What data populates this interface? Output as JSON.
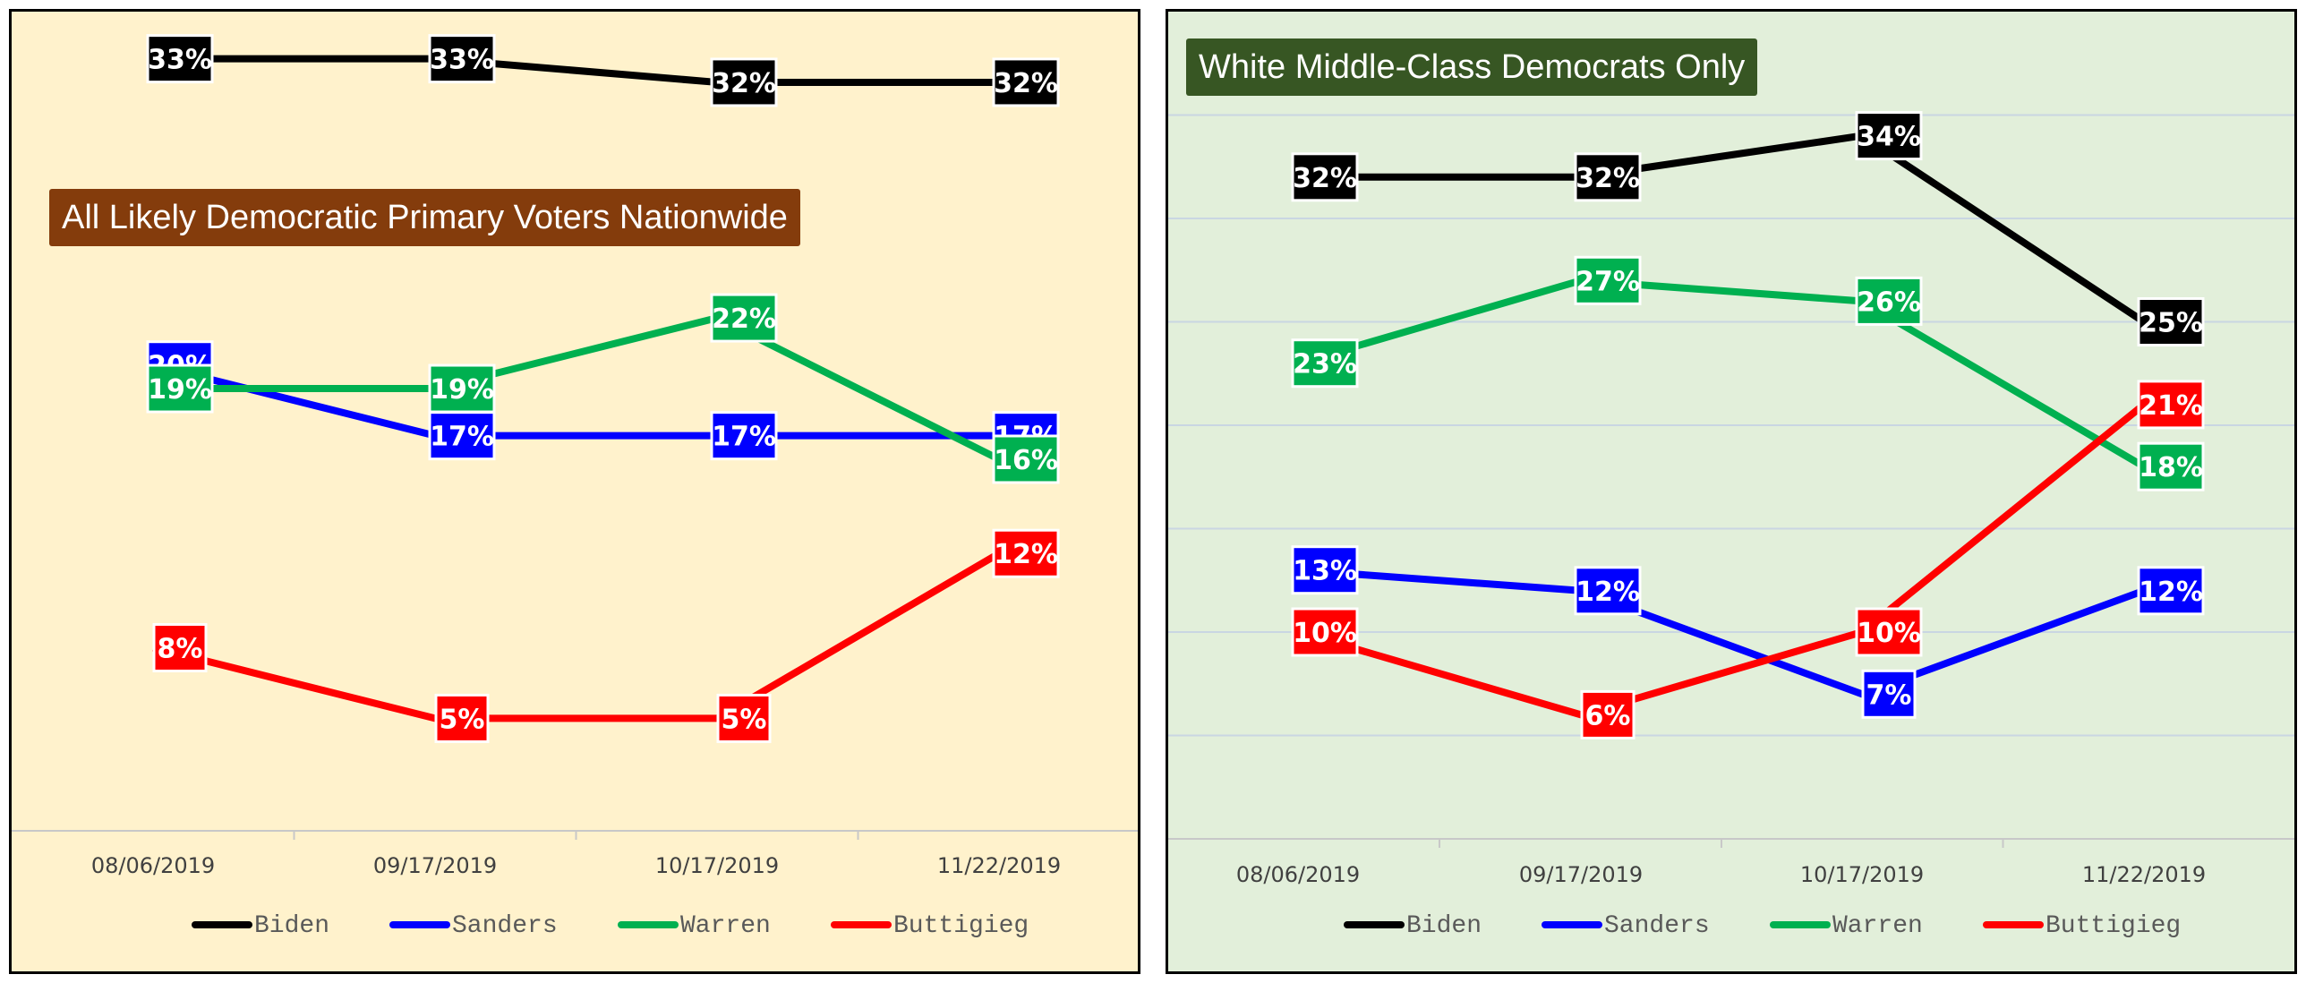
{
  "chart_data": [
    {
      "type": "line",
      "title": "All Likely Democratic Primary Voters Nationwide",
      "title_color": "#843C0C",
      "background": "#FFF2CC",
      "categories": [
        "08/06/2019",
        "09/17/2019",
        "10/17/2019",
        "11/22/2019"
      ],
      "value_format": "percent",
      "ylim": [
        0,
        35
      ],
      "series": [
        {
          "name": "Biden",
          "color": "#000000",
          "values": [
            33,
            33,
            32,
            32
          ],
          "labels": [
            "33%",
            "33%",
            "32%",
            "32%"
          ]
        },
        {
          "name": "Sanders",
          "color": "#0000FF",
          "values": [
            20,
            17,
            17,
            17
          ],
          "labels": [
            "20%",
            "17%",
            "17%",
            "17%"
          ]
        },
        {
          "name": "Warren",
          "color": "#00B050",
          "values": [
            19,
            19,
            22,
            16
          ],
          "labels": [
            "19%",
            "19%",
            "22%",
            "16%"
          ]
        },
        {
          "name": "Buttigieg",
          "color": "#FF0000",
          "values": [
            8,
            5,
            5,
            12
          ],
          "labels": [
            "8%",
            "5%",
            "5%",
            "12%"
          ]
        }
      ],
      "legend_position": "bottom",
      "grid": false
    },
    {
      "type": "line",
      "title": "White Middle-Class Democrats Only",
      "title_color": "#375623",
      "background": "#E2EFDA",
      "categories": [
        "08/06/2019",
        "09/17/2019",
        "10/17/2019",
        "11/22/2019"
      ],
      "value_format": "percent",
      "ylim": [
        0,
        40
      ],
      "series": [
        {
          "name": "Biden",
          "color": "#000000",
          "values": [
            32,
            32,
            34,
            25
          ],
          "labels": [
            "32%",
            "32%",
            "34%",
            "25%"
          ]
        },
        {
          "name": "Sanders",
          "color": "#0000FF",
          "values": [
            13,
            12,
            7,
            12
          ],
          "labels": [
            "13%",
            "12%",
            "7%",
            "12%"
          ]
        },
        {
          "name": "Warren",
          "color": "#00B050",
          "values": [
            23,
            27,
            26,
            18
          ],
          "labels": [
            "23%",
            "27%",
            "26%",
            "18%"
          ]
        },
        {
          "name": "Buttigieg",
          "color": "#FF0000",
          "values": [
            10,
            6,
            10,
            21
          ],
          "labels": [
            "10%",
            "6%",
            "10%",
            "21%"
          ]
        }
      ],
      "legend_position": "bottom",
      "grid": true
    }
  ]
}
